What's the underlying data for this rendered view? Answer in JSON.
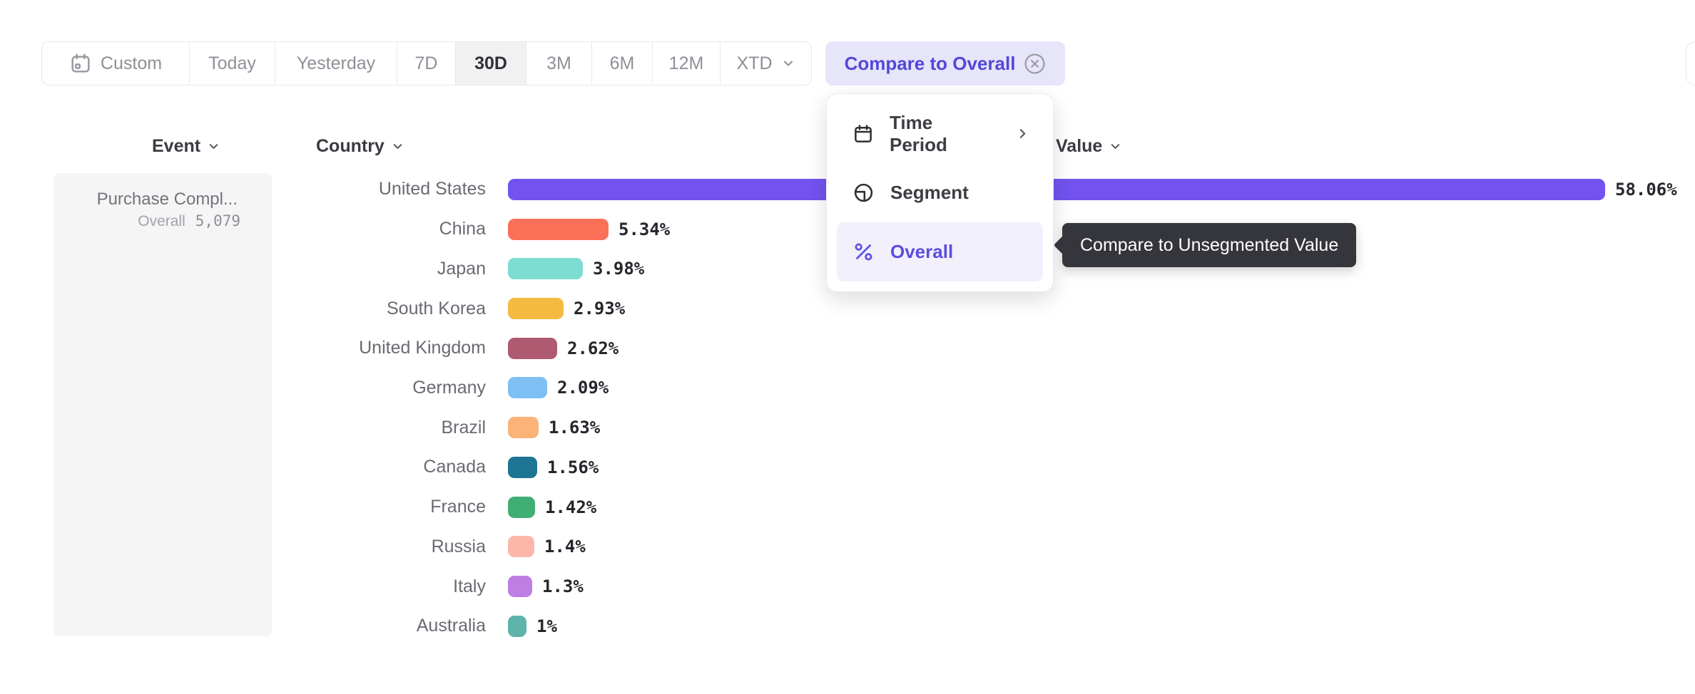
{
  "toolbar": {
    "buttons": [
      {
        "label": "Custom",
        "icon": "calendar"
      },
      {
        "label": "Today"
      },
      {
        "label": "Yesterday"
      },
      {
        "label": "7D"
      },
      {
        "label": "30D",
        "selected": true
      },
      {
        "label": "3M"
      },
      {
        "label": "6M"
      },
      {
        "label": "12M"
      },
      {
        "label": "XTD",
        "chevron": true
      }
    ],
    "compare_chip_label": "Compare to Overall"
  },
  "columns": {
    "event": "Event",
    "country": "Country",
    "value": "Value"
  },
  "event_panel": {
    "event_name": "Purchase Compl...",
    "overall_label": "Overall",
    "overall_value": "5,079"
  },
  "menu": {
    "items": [
      {
        "label": "Time Period",
        "icon": "calendar",
        "submenu": true
      },
      {
        "label": "Segment",
        "icon": "segment"
      },
      {
        "label": "Overall",
        "icon": "percent",
        "active": true
      }
    ]
  },
  "tooltip": {
    "text": "Compare to Unsegmented Value"
  },
  "colors": {
    "accent_purple": "#5348d8",
    "chip_bg": "#e7e5fa",
    "menu_active_bg": "#f2f0fb",
    "tooltip_bg": "#35353c",
    "selected_range_bg": "#f1f1f2"
  },
  "chart_data": {
    "type": "bar",
    "orientation": "horizontal",
    "categories": [
      "United States",
      "China",
      "Japan",
      "South Korea",
      "United Kingdom",
      "Germany",
      "Brazil",
      "Canada",
      "France",
      "Russia",
      "Italy",
      "Australia"
    ],
    "values": [
      58.06,
      5.34,
      3.98,
      2.93,
      2.62,
      2.09,
      1.63,
      1.56,
      1.42,
      1.4,
      1.3,
      1
    ],
    "value_labels": [
      "58.06%",
      "5.34%",
      "3.98%",
      "2.93%",
      "2.62%",
      "2.09%",
      "1.63%",
      "1.56%",
      "1.42%",
      "1.4%",
      "1.3%",
      "1%"
    ],
    "colors": [
      "#7253ef",
      "#fb7058",
      "#7eddd3",
      "#f5bb41",
      "#b05a71",
      "#7fc0f4",
      "#fcb378",
      "#1d7493",
      "#41ae73",
      "#fcb6aa",
      "#bf7ee4",
      "#5eb3ab"
    ],
    "xlabel": "Value",
    "ylabel": "Country",
    "xlim": [
      0,
      60
    ],
    "grid": false,
    "legend": false
  }
}
